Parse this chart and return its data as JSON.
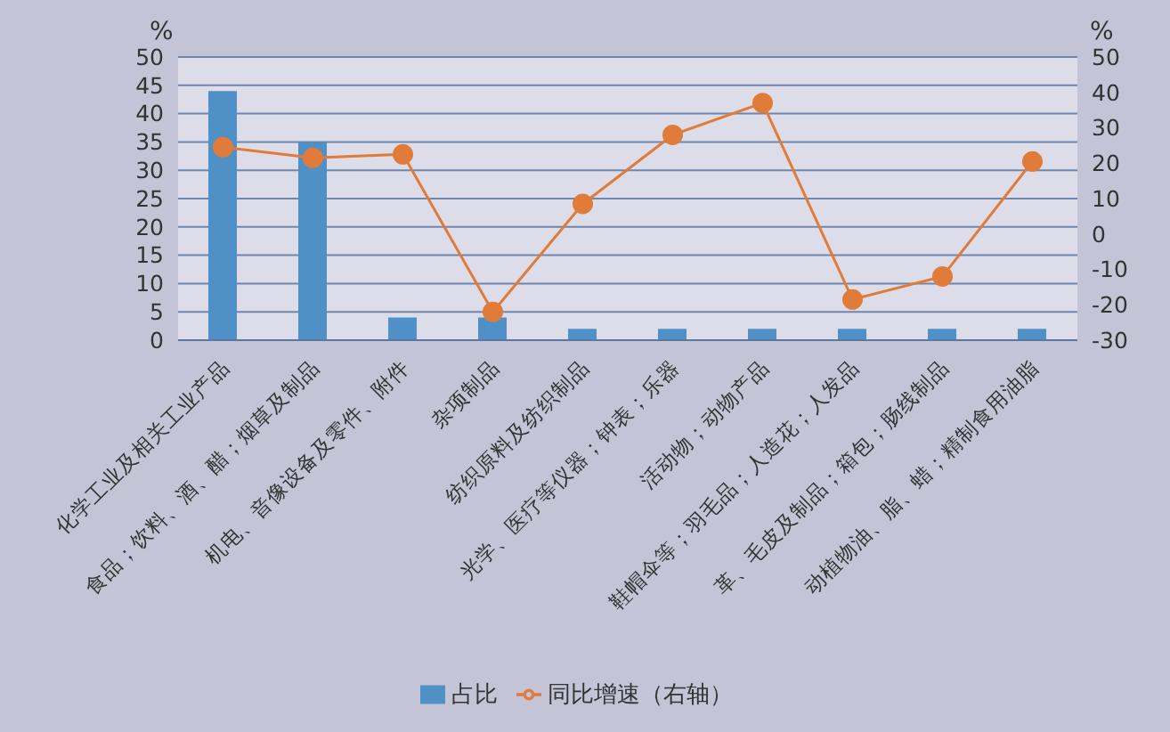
{
  "chart_data": {
    "type": "bar",
    "ylabel": "%",
    "y2label": "%",
    "categories": [
      "化学工业及相关工业产品",
      "食品；饮料、酒、醋；烟草及制品",
      "机电、音像设备及零件、附件",
      "杂项制品",
      "纺织原料及纺织制品",
      "光学、医疗等仪器；钟表；乐器",
      "活动物；动物产品",
      "鞋帽伞等；羽毛品；人造花；人发品",
      "革、毛皮及制品；箱包；肠线制品",
      "动植物油、脂、蜡；精制食用油脂"
    ],
    "series": [
      {
        "name": "占比",
        "color": "#4f90c6",
        "values": [
          44,
          35,
          4,
          4,
          2,
          2,
          2,
          2,
          2,
          2
        ]
      },
      {
        "name": "同比增速（右轴）",
        "type": "line",
        "axis": "y2",
        "color": "#e07b39",
        "marker": "circle",
        "values": [
          24.5,
          21.5,
          22.5,
          -22,
          8.5,
          28,
          37,
          -18.5,
          -12,
          20.5
        ]
      }
    ],
    "ylim": [
      0,
      50
    ],
    "yticks": [
      0,
      5,
      10,
      15,
      20,
      25,
      30,
      35,
      40,
      45,
      50
    ],
    "y2lim": [
      -30,
      50
    ],
    "y2ticks": [
      -30,
      -20,
      -10,
      0,
      10,
      20,
      30,
      40,
      50
    ],
    "grid": "y",
    "legend": "bottom"
  }
}
